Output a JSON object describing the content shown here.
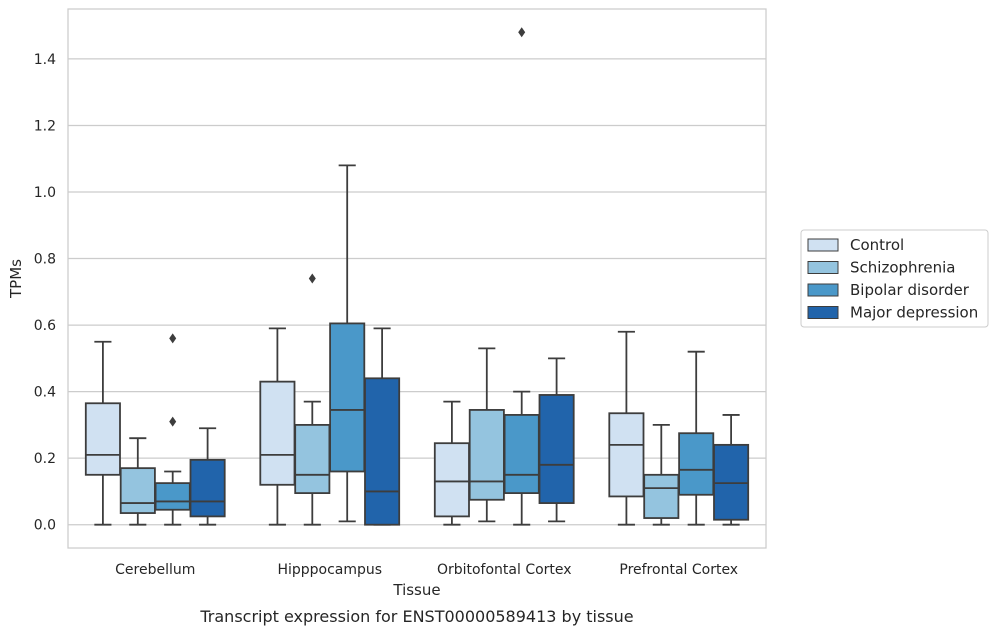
{
  "caption": "Transcript expression for ENST00000589413 by tissue",
  "chart_data": {
    "type": "box",
    "xlabel": "Tissue",
    "ylabel": "TPMs",
    "ylim": [
      -0.07,
      1.55
    ],
    "yticks": [
      0.0,
      0.2,
      0.4,
      0.6,
      0.8,
      1.0,
      1.2,
      1.4
    ],
    "ytick_labels": [
      "0.0",
      "0.2",
      "0.4",
      "0.6",
      "0.8",
      "1.0",
      "1.2",
      "1.4"
    ],
    "grid": "horizontal",
    "legend_position": "right",
    "categories": [
      "Cerebellum",
      "Hipppocampus",
      "Orbitofontal Cortex",
      "Prefrontal Cortex"
    ],
    "series": [
      {
        "name": "Control",
        "color": "#d0e1f2",
        "boxes": [
          {
            "min": 0.0,
            "q1": 0.15,
            "median": 0.21,
            "q3": 0.365,
            "max": 0.55,
            "outliers": []
          },
          {
            "min": 0.0,
            "q1": 0.12,
            "median": 0.21,
            "q3": 0.43,
            "max": 0.59,
            "outliers": []
          },
          {
            "min": 0.0,
            "q1": 0.025,
            "median": 0.13,
            "q3": 0.245,
            "max": 0.37,
            "outliers": []
          },
          {
            "min": 0.0,
            "q1": 0.085,
            "median": 0.24,
            "q3": 0.335,
            "max": 0.58,
            "outliers": []
          }
        ]
      },
      {
        "name": "Schizophrenia",
        "color": "#94c4df",
        "boxes": [
          {
            "min": 0.0,
            "q1": 0.035,
            "median": 0.065,
            "q3": 0.17,
            "max": 0.26,
            "outliers": []
          },
          {
            "min": 0.0,
            "q1": 0.095,
            "median": 0.15,
            "q3": 0.3,
            "max": 0.37,
            "outliers": [
              0.74
            ]
          },
          {
            "min": 0.01,
            "q1": 0.075,
            "median": 0.13,
            "q3": 0.345,
            "max": 0.53,
            "outliers": []
          },
          {
            "min": 0.0,
            "q1": 0.02,
            "median": 0.11,
            "q3": 0.15,
            "max": 0.3,
            "outliers": []
          }
        ]
      },
      {
        "name": "Bipolar disorder",
        "color": "#4a98c9",
        "boxes": [
          {
            "min": 0.0,
            "q1": 0.045,
            "median": 0.07,
            "q3": 0.125,
            "max": 0.16,
            "outliers": [
              0.31,
              0.56
            ]
          },
          {
            "min": 0.01,
            "q1": 0.16,
            "median": 0.345,
            "q3": 0.605,
            "max": 1.08,
            "outliers": []
          },
          {
            "min": 0.0,
            "q1": 0.095,
            "median": 0.15,
            "q3": 0.33,
            "max": 0.4,
            "outliers": [
              1.48
            ]
          },
          {
            "min": 0.0,
            "q1": 0.09,
            "median": 0.165,
            "q3": 0.275,
            "max": 0.52,
            "outliers": []
          }
        ]
      },
      {
        "name": "Major depression",
        "color": "#2164ab",
        "boxes": [
          {
            "min": 0.0,
            "q1": 0.025,
            "median": 0.07,
            "q3": 0.195,
            "max": 0.29,
            "outliers": []
          },
          {
            "min": 0.0,
            "q1": 0.0,
            "median": 0.1,
            "q3": 0.44,
            "max": 0.59,
            "outliers": []
          },
          {
            "min": 0.01,
            "q1": 0.065,
            "median": 0.18,
            "q3": 0.39,
            "max": 0.5,
            "outliers": []
          },
          {
            "min": 0.0,
            "q1": 0.015,
            "median": 0.125,
            "q3": 0.24,
            "max": 0.33,
            "outliers": []
          }
        ]
      }
    ]
  }
}
